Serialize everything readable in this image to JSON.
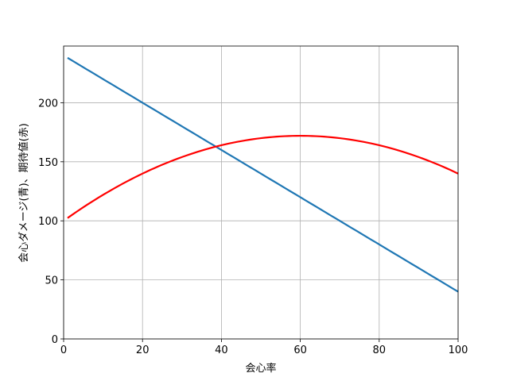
{
  "chart_data": {
    "type": "line",
    "xlabel": "会心率",
    "ylabel": "会心ダメージ(青)、期待値(赤)",
    "x": [
      1,
      2,
      3,
      4,
      5,
      6,
      7,
      8,
      9,
      10,
      11,
      12,
      13,
      14,
      15,
      16,
      17,
      18,
      19,
      20,
      21,
      22,
      23,
      24,
      25,
      26,
      27,
      28,
      29,
      30,
      31,
      32,
      33,
      34,
      35,
      36,
      37,
      38,
      39,
      40,
      41,
      42,
      43,
      44,
      45,
      46,
      47,
      48,
      49,
      50,
      51,
      52,
      53,
      54,
      55,
      56,
      57,
      58,
      59,
      60,
      61,
      62,
      63,
      64,
      65,
      66,
      67,
      68,
      69,
      70,
      71,
      72,
      73,
      74,
      75,
      76,
      77,
      78,
      79,
      80,
      81,
      82,
      83,
      84,
      85,
      86,
      87,
      88,
      89,
      90,
      91,
      92,
      93,
      94,
      95,
      96,
      97,
      98,
      99,
      100
    ],
    "series": [
      {
        "color": "#1f77b4",
        "values": [
          238,
          236,
          234,
          232,
          230,
          228,
          226,
          224,
          222,
          220,
          218,
          216,
          214,
          212,
          210,
          208,
          206,
          204,
          202,
          200,
          198,
          196,
          194,
          192,
          190,
          188,
          186,
          184,
          182,
          180,
          178,
          176,
          174,
          172,
          170,
          168,
          166,
          164,
          162,
          160,
          158,
          156,
          154,
          152,
          150,
          148,
          146,
          144,
          142,
          140,
          138,
          136,
          134,
          132,
          130,
          128,
          126,
          124,
          122,
          120,
          118,
          116,
          114,
          112,
          110,
          108,
          106,
          104,
          102,
          100,
          98,
          96,
          94,
          92,
          90,
          88,
          86,
          84,
          82,
          80,
          78,
          76,
          74,
          72,
          70,
          68,
          66,
          64,
          62,
          60,
          58,
          56,
          54,
          52,
          50,
          48,
          46,
          44,
          42,
          40
        ]
      },
      {
        "color": "#ff0000",
        "values": [
          102.38,
          104.72,
          107.02,
          109.28,
          111.5,
          113.68,
          115.82,
          117.92,
          119.98,
          122,
          123.98,
          125.92,
          127.82,
          129.68,
          131.5,
          133.28,
          135.02,
          136.72,
          138.38,
          140,
          141.58,
          143.12,
          144.62,
          146.08,
          147.5,
          148.88,
          150.22,
          151.52,
          152.78,
          154,
          155.18,
          156.32,
          157.42,
          158.48,
          159.5,
          160.48,
          161.42,
          162.32,
          163.18,
          164,
          164.78,
          165.52,
          166.22,
          166.88,
          167.5,
          168.08,
          168.62,
          169.12,
          169.58,
          170,
          170.38,
          170.72,
          171.02,
          171.28,
          171.5,
          171.68,
          171.82,
          171.92,
          171.98,
          172,
          171.98,
          171.92,
          171.82,
          171.68,
          171.5,
          171.28,
          171.02,
          170.72,
          170.38,
          170,
          169.58,
          169.12,
          168.62,
          168.08,
          167.5,
          166.88,
          166.22,
          165.52,
          164.78,
          164,
          163.18,
          162.32,
          161.42,
          160.48,
          159.5,
          158.48,
          157.42,
          156.32,
          155.18,
          154,
          152.78,
          151.52,
          150.22,
          148.88,
          147.5,
          146.08,
          144.62,
          143.12,
          141.58,
          140
        ]
      }
    ],
    "xlim": [
      0,
      100
    ],
    "ylim": [
      0,
      248
    ],
    "xticks": [
      0,
      20,
      40,
      60,
      80,
      100
    ],
    "yticks": [
      0,
      50,
      100,
      150,
      200
    ],
    "grid": true
  }
}
